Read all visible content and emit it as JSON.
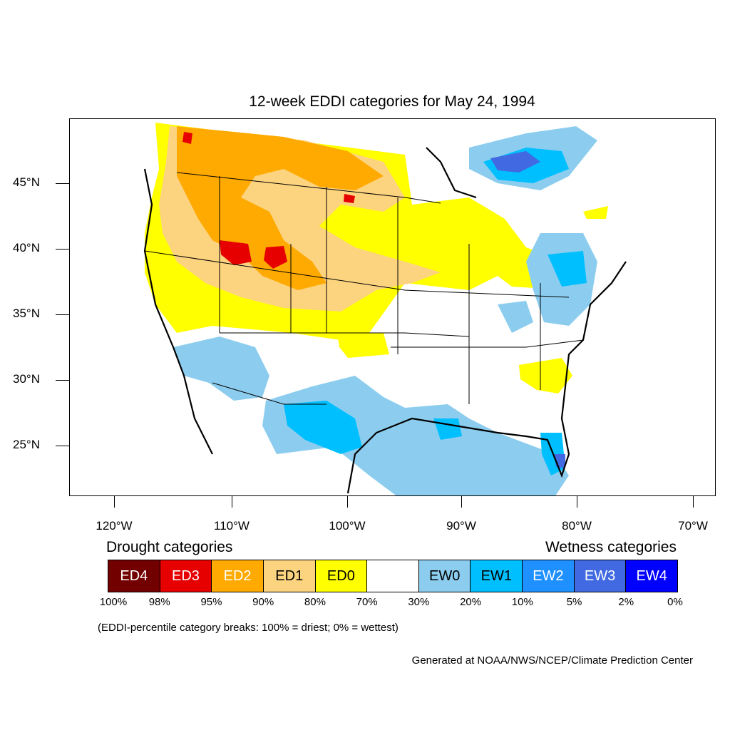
{
  "title": "12-week EDDI categories for May 24, 1994",
  "lat_labels": [
    "45°N",
    "40°N",
    "35°N",
    "30°N",
    "25°N"
  ],
  "lon_labels": [
    "120°W",
    "110°W",
    "100°W",
    "90°W",
    "80°W",
    "70°W"
  ],
  "legend": {
    "drought_heading": "Drought categories",
    "wetness_heading": "Wetness categories",
    "categories": [
      {
        "label": "ED4",
        "color": "#730000",
        "text_color": "#ffffff"
      },
      {
        "label": "ED3",
        "color": "#e60000",
        "text_color": "#ffffff"
      },
      {
        "label": "ED2",
        "color": "#ffaa00",
        "text_color": "#ffffff"
      },
      {
        "label": "ED1",
        "color": "#fcd37f",
        "text_color": "#000000"
      },
      {
        "label": "ED0",
        "color": "#ffff00",
        "text_color": "#000000"
      },
      {
        "label": "",
        "color": "#ffffff",
        "text_color": "#000000"
      },
      {
        "label": "EW0",
        "color": "#8ccdef",
        "text_color": "#000000"
      },
      {
        "label": "EW1",
        "color": "#00bfff",
        "text_color": "#000000"
      },
      {
        "label": "EW2",
        "color": "#1e90ff",
        "text_color": "#ffffff"
      },
      {
        "label": "EW3",
        "color": "#4169e1",
        "text_color": "#ffffff"
      },
      {
        "label": "EW4",
        "color": "#0000ff",
        "text_color": "#ffffff"
      }
    ],
    "breaks": [
      "100%",
      "98%",
      "95%",
      "90%",
      "80%",
      "70%",
      "30%",
      "20%",
      "10%",
      "5%",
      "2%",
      "0%"
    ],
    "note": "(EDDI-percentile category breaks: 100% = driest; 0% = wettest)"
  },
  "credit": "Generated at NOAA/NWS/NCEP/Climate Prediction Center"
}
